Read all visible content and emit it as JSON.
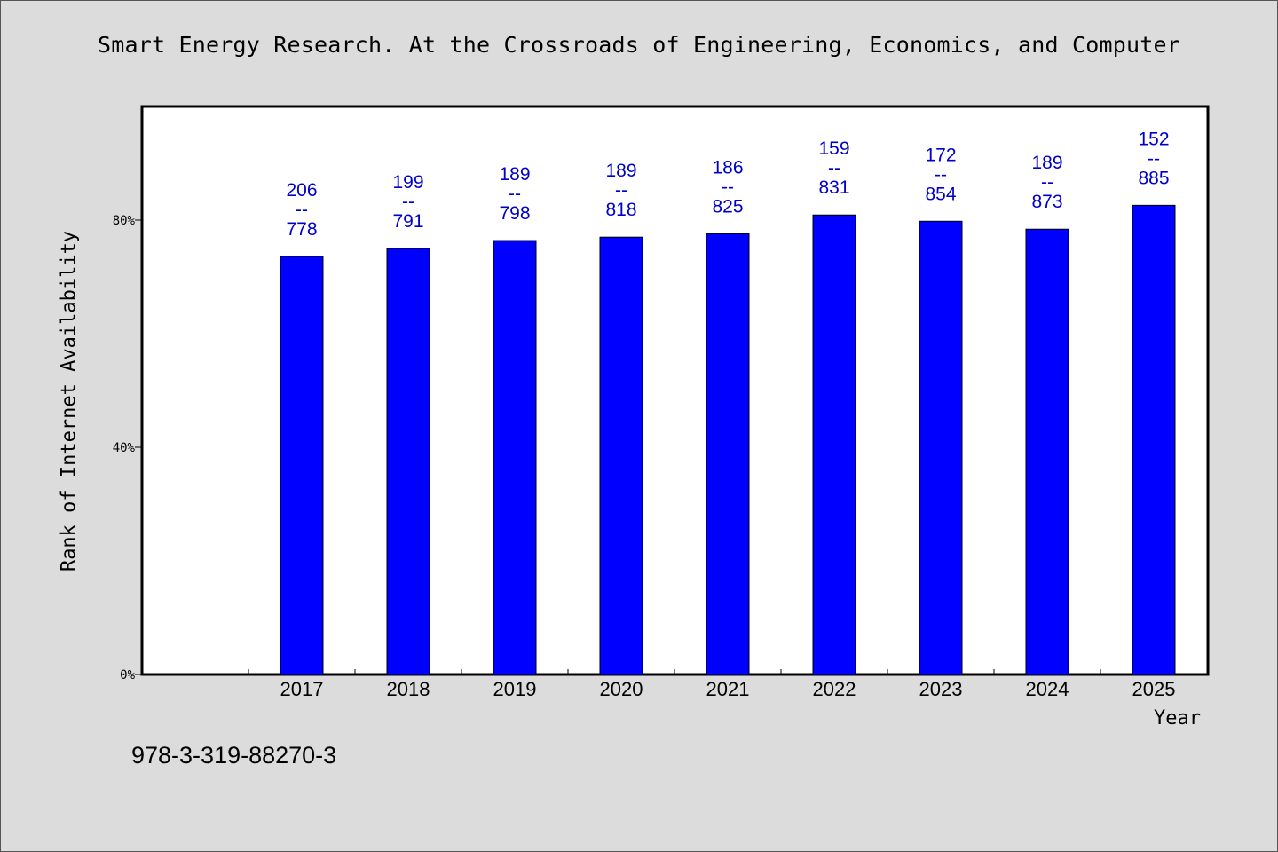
{
  "chart_data": {
    "type": "bar",
    "title": "Smart Energy Research. At the Crossroads of Engineering, Economics, and Computer",
    "xlabel": "Year",
    "ylabel": "Rank of Internet Availability",
    "categories": [
      "2017",
      "2018",
      "2019",
      "2020",
      "2021",
      "2022",
      "2023",
      "2024",
      "2025"
    ],
    "values": [
      73.6,
      75.0,
      76.4,
      77.0,
      77.6,
      80.9,
      79.8,
      78.4,
      82.6
    ],
    "bar_labels": [
      [
        "206",
        "--",
        "778"
      ],
      [
        "199",
        "--",
        "791"
      ],
      [
        "189",
        "--",
        "798"
      ],
      [
        "189",
        "--",
        "818"
      ],
      [
        "186",
        "--",
        "825"
      ],
      [
        "159",
        "--",
        "831"
      ],
      [
        "172",
        "--",
        "854"
      ],
      [
        "189",
        "--",
        "873"
      ],
      [
        "152",
        "--",
        "885"
      ]
    ],
    "yticks": [
      0,
      40,
      80
    ],
    "ytick_labels": [
      "0%",
      "40%",
      "80%"
    ],
    "ylim": [
      0,
      100
    ],
    "grid": false,
    "colors": {
      "bar": "#0000ff",
      "label": "#0000cc",
      "background": "#dcdcdc",
      "plot": "#ffffff"
    }
  },
  "footnote": "978-3-319-88270-3"
}
